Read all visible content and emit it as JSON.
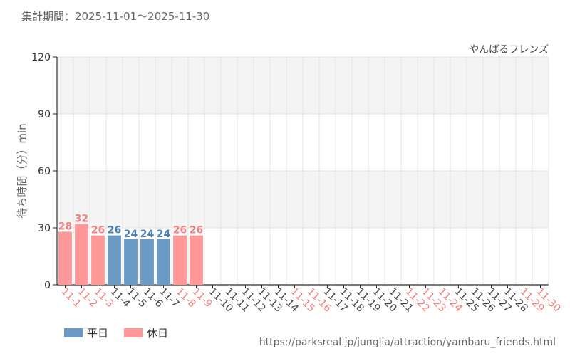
{
  "period_text": "集計期間：2025-11-01～2025-11-30",
  "source_url": "https://parksreal.jp/junglia/attraction/yambaru_friends.html",
  "colors": {
    "weekday": "#6b9ac4",
    "holiday": "#ff9999",
    "weekday_label": "#4a7fb5",
    "holiday_label": "#f08080"
  },
  "legend": [
    {
      "label": "平日",
      "color": "#6b9ac4"
    },
    {
      "label": "休日",
      "color": "#ff9999"
    }
  ],
  "chart_data": {
    "type": "bar",
    "title": "やんばるフレンズ",
    "xlabel": "",
    "ylabel": "待ち時間（分）min",
    "ylim": [
      0,
      120
    ],
    "yticks": [
      "0",
      "30",
      "60",
      "90",
      "120"
    ],
    "grid": true,
    "legend_position": "bottom-left",
    "categories": [
      "11-1",
      "11-2",
      "11-3",
      "11-4",
      "11-5",
      "11-6",
      "11-7",
      "11-8",
      "11-9",
      "11-10",
      "11-11",
      "11-12",
      "11-13",
      "11-14",
      "11-15",
      "11-16",
      "11-17",
      "11-18",
      "11-19",
      "11-20",
      "11-21",
      "11-22",
      "11-23",
      "11-24",
      "11-25",
      "11-26",
      "11-27",
      "11-28",
      "11-29",
      "11-30"
    ],
    "day_type": [
      "holiday",
      "holiday",
      "holiday",
      "weekday",
      "weekday",
      "weekday",
      "weekday",
      "holiday",
      "holiday",
      "weekday",
      "weekday",
      "weekday",
      "weekday",
      "weekday",
      "holiday",
      "holiday",
      "weekday",
      "weekday",
      "weekday",
      "weekday",
      "weekday",
      "holiday",
      "holiday",
      "holiday",
      "weekday",
      "weekday",
      "weekday",
      "weekday",
      "holiday",
      "holiday"
    ],
    "values": [
      28,
      32,
      26,
      26,
      24,
      24,
      24,
      26,
      26,
      null,
      null,
      null,
      null,
      null,
      null,
      null,
      null,
      null,
      null,
      null,
      null,
      null,
      null,
      null,
      null,
      null,
      null,
      null,
      null,
      null
    ]
  }
}
